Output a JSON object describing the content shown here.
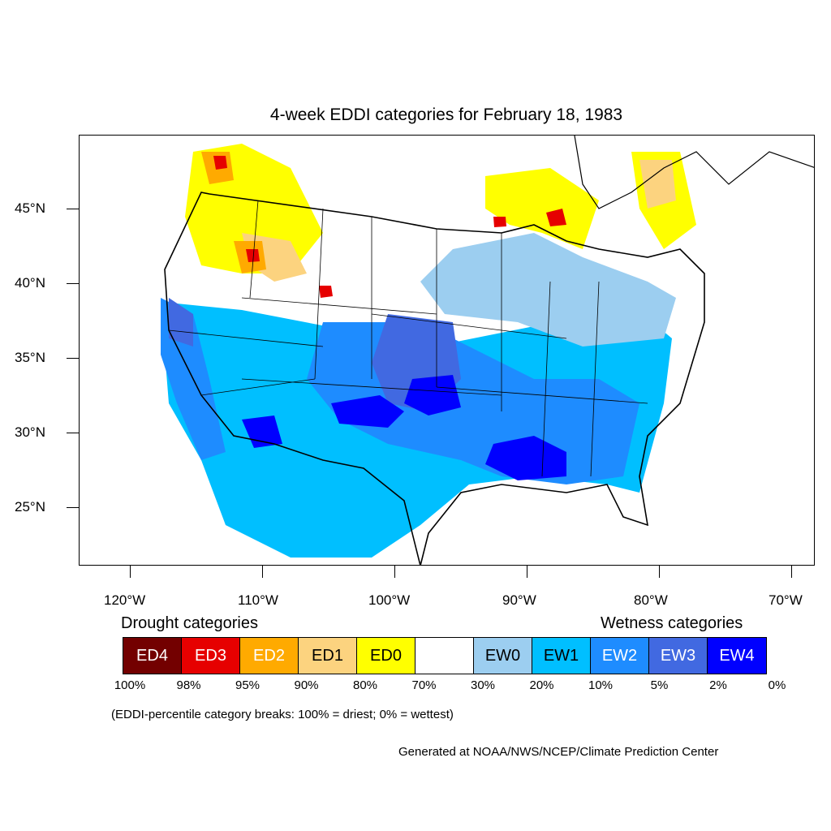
{
  "map": {
    "title": "4-week EDDI categories for February 18, 1983",
    "lat_labels": [
      "45°N",
      "40°N",
      "35°N",
      "30°N",
      "25°N"
    ],
    "lon_labels": [
      "120°W",
      "110°W",
      "100°W",
      "90°W",
      "80°W",
      "70°W"
    ]
  },
  "legend": {
    "drought_heading": "Drought categories",
    "wetness_heading": "Wetness categories",
    "categories": [
      {
        "label": "ED4",
        "color": "#730000",
        "text_color": "#ffffff"
      },
      {
        "label": "ED3",
        "color": "#e60000",
        "text_color": "#ffffff"
      },
      {
        "label": "ED2",
        "color": "#ffaa00",
        "text_color": "#ffffff"
      },
      {
        "label": "ED1",
        "color": "#fcd37f",
        "text_color": "#000000"
      },
      {
        "label": "ED0",
        "color": "#ffff00",
        "text_color": "#000000"
      },
      {
        "label": "",
        "color": "#ffffff",
        "text_color": "#000000"
      },
      {
        "label": "EW0",
        "color": "#9ccef0",
        "text_color": "#000000"
      },
      {
        "label": "EW1",
        "color": "#00bfff",
        "text_color": "#000000"
      },
      {
        "label": "EW2",
        "color": "#1e8cff",
        "text_color": "#ffffff"
      },
      {
        "label": "EW3",
        "color": "#4169e1",
        "text_color": "#ffffff"
      },
      {
        "label": "EW4",
        "color": "#0000ff",
        "text_color": "#ffffff"
      }
    ],
    "breaks": [
      "100%",
      "98%",
      "95%",
      "90%",
      "80%",
      "70%",
      "30%",
      "20%",
      "10%",
      "5%",
      "2%",
      "0%"
    ],
    "note": "(EDDI-percentile category breaks: 100% = driest; 0% = wettest)"
  },
  "credit": "Generated at NOAA/NWS/NCEP/Climate Prediction Center"
}
